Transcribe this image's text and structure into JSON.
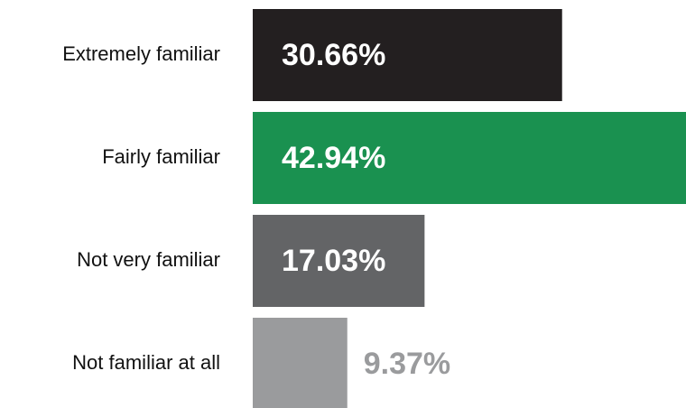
{
  "chart_data": {
    "type": "bar",
    "categories": [
      "Extremely familiar",
      "Fairly familiar",
      "Not very familiar",
      "Not familiar at all"
    ],
    "values": [
      30.66,
      42.94,
      17.03,
      9.37
    ],
    "value_labels": [
      "30.66%",
      "42.94%",
      "17.03%",
      "9.37%"
    ],
    "colors": [
      "#231f20",
      "#1a9150",
      "#636466",
      "#9a9b9d"
    ]
  }
}
